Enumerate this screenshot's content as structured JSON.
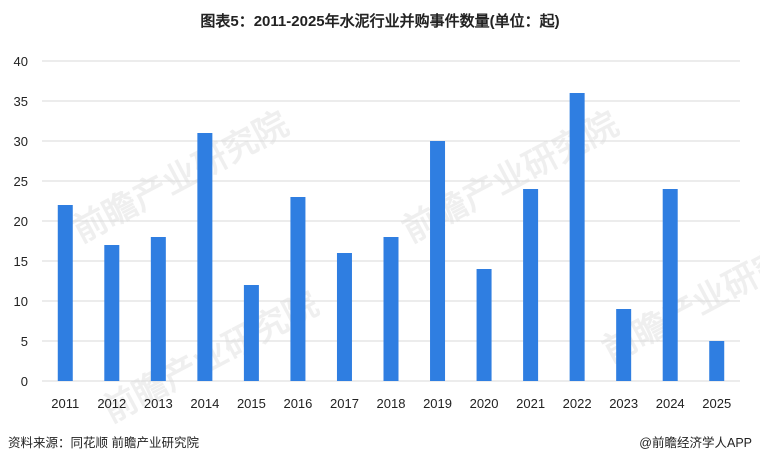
{
  "title": "图表5：2011-2025年水泥行业并购事件数量(单位：起)",
  "source": "资料来源：同花顺 前瞻产业研究院",
  "credit": "@前瞻经济学人APP",
  "watermark_text": "前瞻产业研究院",
  "colors": {
    "bar": "#2f7ee1",
    "grid": "#d9d9d9",
    "text": "#222222"
  },
  "chart_data": {
    "type": "bar",
    "title": "图表5：2011-2025年水泥行业并购事件数量(单位：起)",
    "categories": [
      "2011",
      "2012",
      "2013",
      "2014",
      "2015",
      "2016",
      "2017",
      "2018",
      "2019",
      "2020",
      "2021",
      "2022",
      "2023",
      "2024",
      "2025"
    ],
    "values": [
      22,
      17,
      18,
      31,
      12,
      23,
      16,
      18,
      30,
      14,
      24,
      36,
      9,
      24,
      5
    ],
    "yticks": [
      0,
      5,
      10,
      15,
      20,
      25,
      30,
      35,
      40
    ],
    "ylim": [
      0,
      40
    ],
    "grid": true,
    "legend": "none"
  }
}
